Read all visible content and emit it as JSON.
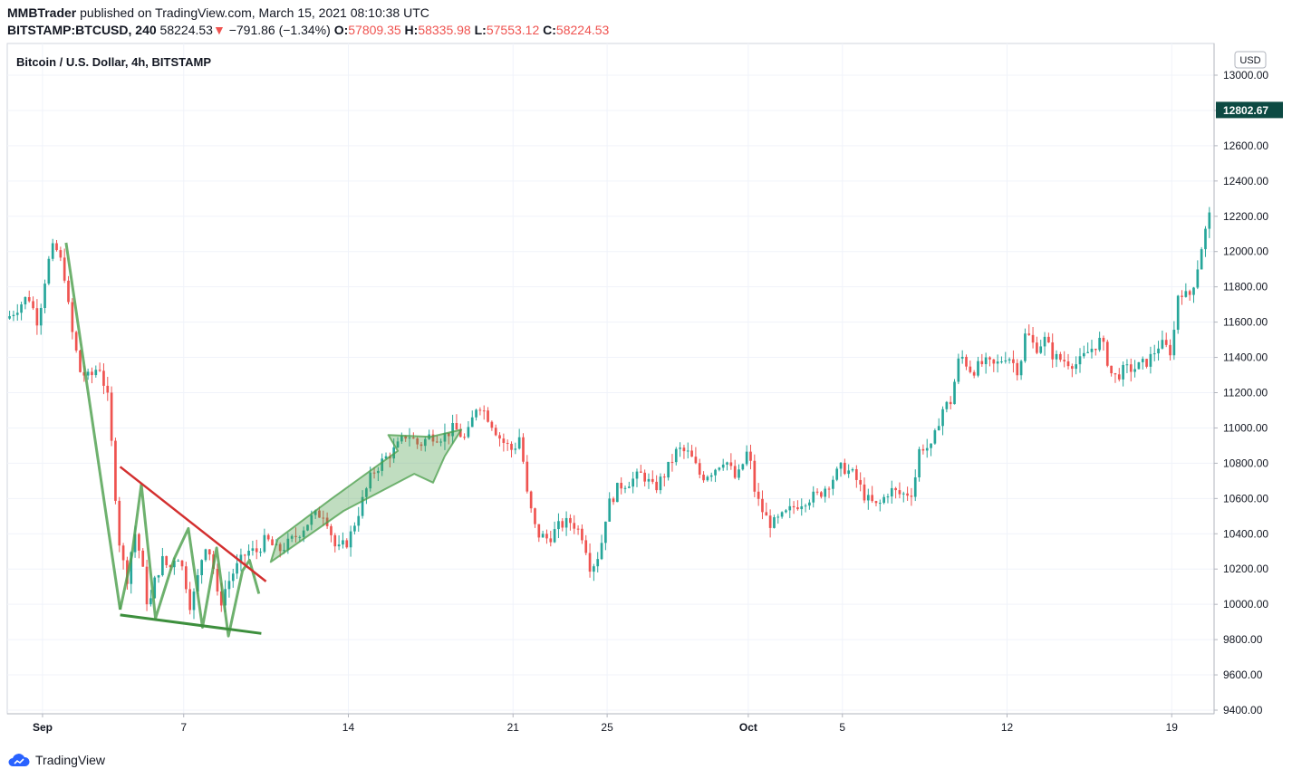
{
  "header": {
    "user": "MMBTrader",
    "published_text": "published on TradingView.com, March 15, 2021 08:10:38 UTC",
    "symbol": "BITSTAMP:BTCUSD, 240",
    "last": "58224.53",
    "change_arrow": "▼",
    "change": "−791.86 (−1.34%)",
    "o_label": "O:",
    "o_value": "57809.35",
    "h_label": "H:",
    "h_value": "58335.98",
    "l_label": "L:",
    "l_value": "57553.12",
    "c_label": "C:",
    "c_value": "58224.53"
  },
  "footer": {
    "brand": "TradingView",
    "logo_icon": "tradingview-cloud-icon"
  },
  "colors": {
    "up": "#26a69a",
    "down": "#ef5350",
    "pattern_green": "#4a9e4a",
    "trendline_red": "#d32f2f",
    "price_tag": "#0d4a43"
  },
  "chart_data": {
    "type": "candlestick",
    "title": "Bitcoin / U.S. Dollar, 4h, BITSTAMP",
    "currency_label": "USD",
    "ylim": [
      9400,
      13000
    ],
    "y_ticks": [
      "13000.00",
      "12800.00",
      "12600.00",
      "12400.00",
      "12200.00",
      "12000.00",
      "11800.00",
      "11600.00",
      "11400.00",
      "11200.00",
      "11000.00",
      "10800.00",
      "10600.00",
      "10400.00",
      "10200.00",
      "10000.00",
      "9800.00",
      "9600.00",
      "9400.00"
    ],
    "x_ticks": [
      {
        "label": "Sep",
        "day": 1,
        "bold": true
      },
      {
        "label": "7",
        "day": 7
      },
      {
        "label": "14",
        "day": 14
      },
      {
        "label": "21",
        "day": 21
      },
      {
        "label": "25",
        "day": 25
      },
      {
        "label": "Oct",
        "day": 31,
        "bold": true
      },
      {
        "label": "5",
        "day": 35
      },
      {
        "label": "12",
        "day": 42
      },
      {
        "label": "19",
        "day": 49
      }
    ],
    "xlim_days": [
      -0.5,
      50.8
    ],
    "last_price": "12802.67",
    "close_path": [
      [
        -0.5,
        11620
      ],
      [
        0.4,
        11750
      ],
      [
        0.8,
        11600
      ],
      [
        1.2,
        11920
      ],
      [
        1.5,
        12040
      ],
      [
        1.9,
        11900
      ],
      [
        2.2,
        11580
      ],
      [
        2.6,
        11320
      ],
      [
        3.0,
        11280
      ],
      [
        3.4,
        11360
      ],
      [
        3.8,
        11150
      ],
      [
        4.05,
        10700
      ],
      [
        4.3,
        10300
      ],
      [
        4.6,
        10150
      ],
      [
        4.9,
        10420
      ],
      [
        5.2,
        10250
      ],
      [
        5.5,
        9960
      ],
      [
        5.8,
        10150
      ],
      [
        6.1,
        10250
      ],
      [
        6.4,
        10200
      ],
      [
        6.7,
        10300
      ],
      [
        7.0,
        10180
      ],
      [
        7.3,
        9980
      ],
      [
        7.6,
        10150
      ],
      [
        7.9,
        10350
      ],
      [
        8.2,
        10270
      ],
      [
        8.5,
        9980
      ],
      [
        8.8,
        10100
      ],
      [
        9.1,
        10180
      ],
      [
        9.4,
        10240
      ],
      [
        9.7,
        10300
      ],
      [
        10.1,
        10300
      ],
      [
        10.5,
        10370
      ],
      [
        11.0,
        10300
      ],
      [
        11.5,
        10350
      ],
      [
        12.0,
        10420
      ],
      [
        12.5,
        10500
      ],
      [
        13.0,
        10520
      ],
      [
        13.5,
        10300
      ],
      [
        14.0,
        10360
      ],
      [
        14.5,
        10550
      ],
      [
        15.0,
        10740
      ],
      [
        15.5,
        10820
      ],
      [
        16.0,
        10880
      ],
      [
        16.5,
        10970
      ],
      [
        17.0,
        10900
      ],
      [
        17.5,
        10960
      ],
      [
        18.0,
        10950
      ],
      [
        18.5,
        11000
      ],
      [
        19.0,
        10930
      ],
      [
        19.5,
        11150
      ],
      [
        20.0,
        11050
      ],
      [
        20.5,
        10930
      ],
      [
        21.0,
        10870
      ],
      [
        21.3,
        10960
      ],
      [
        21.6,
        10620
      ],
      [
        22.0,
        10400
      ],
      [
        22.5,
        10370
      ],
      [
        23.0,
        10450
      ],
      [
        23.5,
        10470
      ],
      [
        24.0,
        10380
      ],
      [
        24.3,
        10200
      ],
      [
        24.7,
        10300
      ],
      [
        25.0,
        10550
      ],
      [
        25.5,
        10670
      ],
      [
        26.0,
        10700
      ],
      [
        26.5,
        10740
      ],
      [
        27.0,
        10650
      ],
      [
        27.5,
        10750
      ],
      [
        28.0,
        10880
      ],
      [
        28.5,
        10850
      ],
      [
        29.0,
        10720
      ],
      [
        29.5,
        10760
      ],
      [
        30.0,
        10830
      ],
      [
        30.5,
        10700
      ],
      [
        31.0,
        10880
      ],
      [
        31.3,
        10620
      ],
      [
        31.7,
        10500
      ],
      [
        32.0,
        10450
      ],
      [
        32.5,
        10500
      ],
      [
        33.0,
        10560
      ],
      [
        33.5,
        10600
      ],
      [
        34.0,
        10620
      ],
      [
        34.5,
        10700
      ],
      [
        35.0,
        10780
      ],
      [
        35.5,
        10730
      ],
      [
        36.0,
        10600
      ],
      [
        36.5,
        10550
      ],
      [
        37.0,
        10650
      ],
      [
        37.5,
        10620
      ],
      [
        38.0,
        10640
      ],
      [
        38.3,
        10900
      ],
      [
        38.8,
        10880
      ],
      [
        39.2,
        11100
      ],
      [
        39.6,
        11150
      ],
      [
        40.0,
        11420
      ],
      [
        40.5,
        11320
      ],
      [
        41.0,
        11370
      ],
      [
        41.5,
        11350
      ],
      [
        42.0,
        11420
      ],
      [
        42.5,
        11320
      ],
      [
        42.8,
        11550
      ],
      [
        43.2,
        11450
      ],
      [
        43.6,
        11500
      ],
      [
        44.0,
        11400
      ],
      [
        44.5,
        11380
      ],
      [
        45.0,
        11360
      ],
      [
        45.5,
        11440
      ],
      [
        46.0,
        11500
      ],
      [
        46.5,
        11280
      ],
      [
        47.0,
        11330
      ],
      [
        47.5,
        11340
      ],
      [
        48.0,
        11380
      ],
      [
        48.5,
        11480
      ],
      [
        49.0,
        11430
      ],
      [
        49.3,
        11800
      ],
      [
        49.7,
        11730
      ],
      [
        50.0,
        11850
      ],
      [
        50.3,
        12050
      ],
      [
        50.6,
        12200
      ],
      [
        50.8,
        12803
      ]
    ],
    "annotations": {
      "red_trendline": [
        [
          4.3,
          10780
        ],
        [
          10.5,
          10130
        ]
      ],
      "green_support": [
        [
          4.3,
          9940
        ],
        [
          10.3,
          9835
        ]
      ],
      "zigzag": [
        [
          4.3,
          9970
        ],
        [
          4.8,
          10280
        ],
        [
          5.2,
          10680
        ],
        [
          5.8,
          9920
        ],
        [
          6.6,
          10260
        ],
        [
          7.2,
          10430
        ],
        [
          7.8,
          9870
        ],
        [
          8.4,
          10320
        ],
        [
          8.9,
          9820
        ],
        [
          9.5,
          10190
        ],
        [
          9.8,
          10250
        ],
        [
          10.2,
          10060
        ]
      ],
      "down_leg": [
        [
          2.0,
          12050
        ],
        [
          4.3,
          9970
        ]
      ],
      "arrow_polygon": [
        [
          10.7,
          10240
        ],
        [
          13.8,
          10530
        ],
        [
          16.8,
          10740
        ],
        [
          17.6,
          10690
        ],
        [
          18.1,
          10840
        ],
        [
          18.8,
          10990
        ],
        [
          17.5,
          10950
        ],
        [
          15.7,
          10960
        ],
        [
          16.1,
          10870
        ],
        [
          13.3,
          10600
        ],
        [
          11.0,
          10370
        ]
      ]
    }
  }
}
